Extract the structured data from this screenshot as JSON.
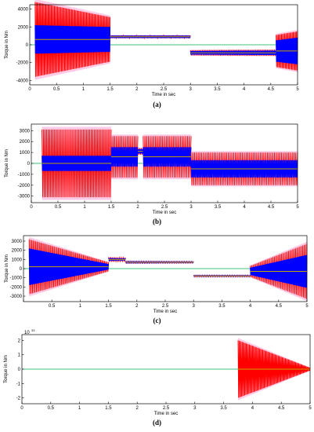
{
  "chart_data": [
    {
      "type": "line",
      "panel_label": "(a)",
      "xlabel": "Time in sec",
      "ylabel": "Torque in Nm",
      "xlim": [
        0,
        5
      ],
      "ylim": [
        -4500,
        4500
      ],
      "xticks": [
        0,
        0.5,
        1,
        1.5,
        2,
        2.5,
        3,
        3.5,
        4,
        4.5,
        5
      ],
      "xtick_labels": [
        "0",
        "0.5",
        "1",
        "1.5",
        "2",
        "2.5",
        "3",
        "3.5",
        "4",
        "4.5",
        "5"
      ],
      "yticks": [
        -4000,
        -2000,
        0,
        2000,
        4000
      ],
      "ytick_labels": [
        "-4000",
        "-2000",
        "0",
        "2000",
        "4000"
      ],
      "grid": false,
      "colors": {
        "envelope": "#ff0000",
        "halo": "#ff9fd0",
        "oscillation": "#0000ff",
        "mean": "#c8a000",
        "reference": "#00b050"
      },
      "segments": [
        {
          "t0": 0.1,
          "t1": 1.5,
          "outer": [
            4200,
            2500
          ],
          "inner": [
            1600,
            1400
          ],
          "mean": 600,
          "cycles": 70
        },
        {
          "t0": 1.5,
          "t1": 3.0,
          "outer": [
            150,
            150
          ],
          "inner": [
            60,
            60
          ],
          "mean": 900,
          "cycles": 60
        },
        {
          "t0": 3.0,
          "t1": 4.6,
          "outer": [
            300,
            350
          ],
          "inner": [
            200,
            250
          ],
          "mean": -900,
          "cycles": 50
        },
        {
          "t0": 4.6,
          "t1": 5.0,
          "outer": [
            1800,
            2200
          ],
          "inner": [
            1200,
            1500
          ],
          "mean": -700,
          "cycles": 20
        }
      ]
    },
    {
      "type": "line",
      "panel_label": "(b)",
      "xlabel": "Time in sec",
      "ylabel": "Torque in Nm",
      "xlim": [
        0,
        5
      ],
      "ylim": [
        -3600,
        3600
      ],
      "xticks": [
        0,
        0.5,
        1,
        1.5,
        2,
        2.5,
        3,
        3.5,
        4,
        4.5,
        5
      ],
      "xtick_labels": [
        "0",
        "0.5",
        "1",
        "1.5",
        "2",
        "2.5",
        "3",
        "3.5",
        "4",
        "4.5",
        "5"
      ],
      "yticks": [
        -3000,
        -2000,
        -1000,
        0,
        1000,
        2000,
        3000
      ],
      "ytick_labels": [
        "-3000",
        "-2000",
        "-1000",
        "0",
        "1000",
        "2000",
        "3000"
      ],
      "grid": false,
      "colors": {
        "envelope": "#ff0000",
        "halo": "#ff9fd0",
        "oscillation": "#0000ff",
        "mean": "#c8a000",
        "reference": "#00b050"
      },
      "segments": [
        {
          "t0": 0.2,
          "t1": 1.5,
          "outer": [
            3100,
            3100
          ],
          "inner": [
            700,
            700
          ],
          "mean": 0,
          "cycles": 45
        },
        {
          "t0": 1.5,
          "t1": 2.0,
          "outer": [
            1900,
            1900
          ],
          "inner": [
            900,
            900
          ],
          "mean": 600,
          "cycles": 15
        },
        {
          "t0": 2.0,
          "t1": 2.1,
          "outer": [
            300,
            300
          ],
          "inner": [
            200,
            200
          ],
          "mean": 1100,
          "cycles": 3
        },
        {
          "t0": 2.1,
          "t1": 3.0,
          "outer": [
            1900,
            1900
          ],
          "inner": [
            900,
            900
          ],
          "mean": 600,
          "cycles": 27
        },
        {
          "t0": 3.0,
          "t1": 5.0,
          "outer": [
            1500,
            1500
          ],
          "inner": [
            800,
            800
          ],
          "mean": -500,
          "cycles": 60
        }
      ]
    },
    {
      "type": "line",
      "panel_label": "(c)",
      "xlabel": "Time in sec",
      "ylabel": "Torque in Nm",
      "xlim": [
        0,
        5
      ],
      "ylim": [
        -3600,
        3600
      ],
      "xticks": [
        0,
        0.5,
        1,
        1.5,
        2,
        2.5,
        3,
        3.5,
        4,
        4.5,
        5
      ],
      "xtick_labels": [
        "",
        "0.5",
        "1",
        "1.5",
        "2",
        "2.5",
        "3",
        "3.5",
        "4",
        "4.5",
        "5"
      ],
      "yticks": [
        -3000,
        -2000,
        -1000,
        0,
        1000,
        2000,
        3000
      ],
      "ytick_labels": [
        "-3000",
        "-2000",
        "-1000",
        "0",
        "1000",
        "2000",
        "3000"
      ],
      "grid": false,
      "colors": {
        "envelope": "#ff0000",
        "halo": "#ff9fd0",
        "oscillation": "#0000ff",
        "mean": "#c8a000",
        "reference": "#00b050"
      },
      "segments": [
        {
          "t0": 0.1,
          "t1": 1.5,
          "outer": [
            3000,
            500
          ],
          "inner": [
            2000,
            300
          ],
          "mean": 200,
          "cycles": 60
        },
        {
          "t0": 1.5,
          "t1": 1.8,
          "outer": [
            250,
            200
          ],
          "inner": [
            150,
            120
          ],
          "mean": 1000,
          "cycles": 8
        },
        {
          "t0": 1.8,
          "t1": 3.0,
          "outer": [
            120,
            100
          ],
          "inner": [
            80,
            60
          ],
          "mean": 700,
          "cycles": 30
        },
        {
          "t0": 3.0,
          "t1": 4.0,
          "outer": [
            100,
            100
          ],
          "inner": [
            60,
            60
          ],
          "mean": -800,
          "cycles": 25
        },
        {
          "t0": 4.0,
          "t1": 5.0,
          "outer": [
            600,
            3000
          ],
          "inner": [
            400,
            1800
          ],
          "mean": -300,
          "cycles": 40
        }
      ]
    },
    {
      "type": "line",
      "panel_label": "(d)",
      "xlabel": "Time in sec",
      "ylabel": "Torque in Nm",
      "scale_note": "10",
      "scale_exponent": "33",
      "xlim": [
        0,
        5
      ],
      "ylim": [
        -2.4,
        2.4
      ],
      "xticks": [
        0,
        0.5,
        1,
        1.5,
        2,
        2.5,
        3,
        3.5,
        4,
        4.5,
        5
      ],
      "xtick_labels": [
        "0",
        "0.5",
        "1",
        "1.5",
        "2",
        "2.5",
        "3",
        "3.5",
        "4",
        "4.5",
        "5"
      ],
      "yticks": [
        -2,
        -1,
        0,
        1,
        2
      ],
      "ytick_labels": [
        "-2",
        "-1",
        "0",
        "1",
        "2"
      ],
      "grid": false,
      "colors": {
        "envelope": "#ff0000",
        "halo": "#ff9fd0",
        "oscillation": "#0000ff",
        "mean": "#c8a000",
        "reference": "#00b050"
      },
      "segments": [
        {
          "t0": 3.75,
          "t1": 5.0,
          "outer": [
            2.0,
            0.1
          ],
          "inner": [
            0,
            0
          ],
          "mean": 0,
          "cycles": 70
        }
      ]
    }
  ]
}
